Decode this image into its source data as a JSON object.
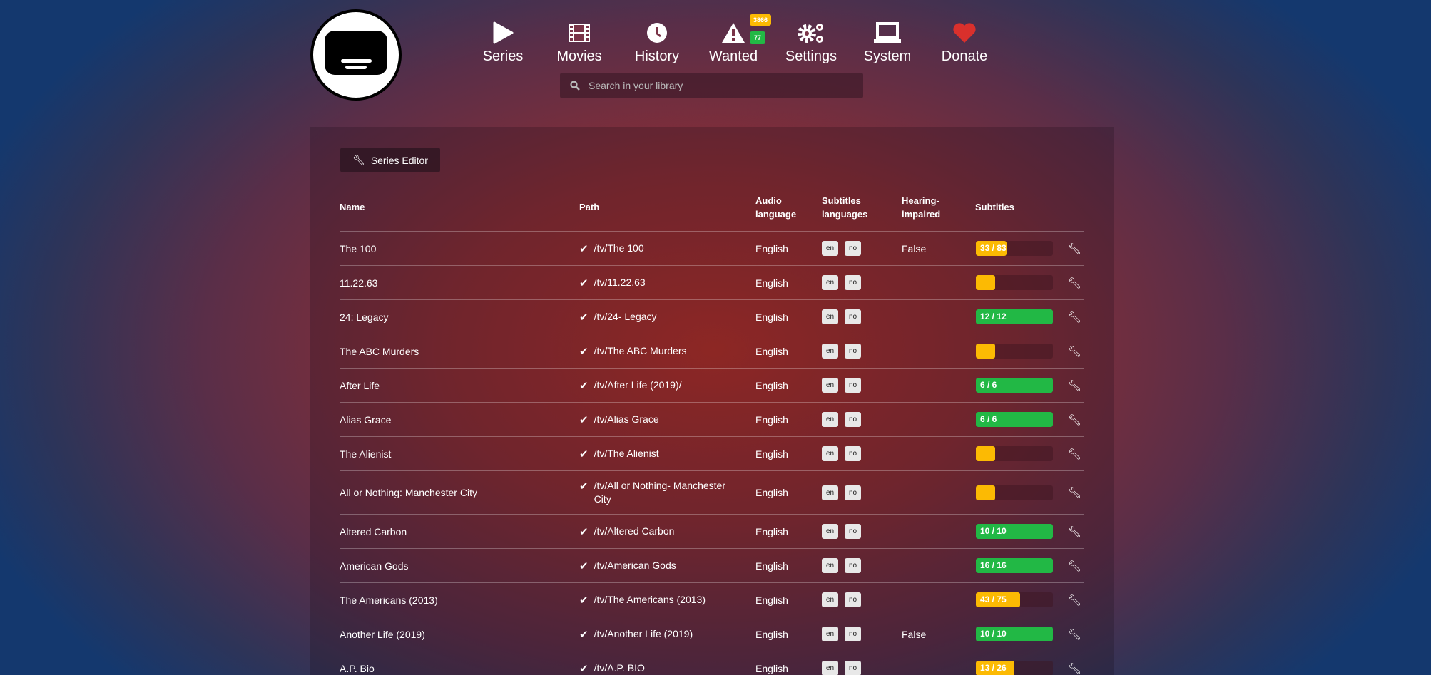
{
  "nav": [
    {
      "label": "Series",
      "icon": "play-icon"
    },
    {
      "label": "Movies",
      "icon": "film-icon"
    },
    {
      "label": "History",
      "icon": "clock-icon"
    },
    {
      "label": "Wanted",
      "icon": "warning-icon",
      "badges": [
        "3866",
        "77"
      ]
    },
    {
      "label": "Settings",
      "icon": "gears-icon"
    },
    {
      "label": "System",
      "icon": "laptop-icon"
    },
    {
      "label": "Donate",
      "icon": "heart-icon"
    }
  ],
  "search": {
    "placeholder": "Search in your library"
  },
  "toolbar": {
    "series_editor": "Series Editor"
  },
  "colors": {
    "complete": "#22b845",
    "partial": "#fcba03",
    "heart": "#d9302c"
  },
  "table": {
    "headers": [
      "Name",
      "Path",
      "Audio language",
      "Subtitles languages",
      "Hearing-impaired",
      "Subtitles"
    ],
    "rows": [
      {
        "name": "The 100",
        "path": "/tv/The 100",
        "audio": "English",
        "subs": [
          "en",
          "no"
        ],
        "hi": "False",
        "progress": "33 / 83",
        "fraction": 0.4
      },
      {
        "name": "11.22.63",
        "path": "/tv/11.22.63",
        "audio": "English",
        "subs": [
          "en",
          "no"
        ],
        "hi": "",
        "progress": "",
        "fraction": 0
      },
      {
        "name": "24: Legacy",
        "path": "/tv/24- Legacy",
        "audio": "English",
        "subs": [
          "en",
          "no"
        ],
        "hi": "",
        "progress": "12 / 12",
        "fraction": 1
      },
      {
        "name": "The ABC Murders",
        "path": "/tv/The ABC Murders",
        "audio": "English",
        "subs": [
          "en",
          "no"
        ],
        "hi": "",
        "progress": "",
        "fraction": 0
      },
      {
        "name": "After Life",
        "path": "/tv/After Life (2019)/",
        "audio": "English",
        "subs": [
          "en",
          "no"
        ],
        "hi": "",
        "progress": "6 / 6",
        "fraction": 1
      },
      {
        "name": "Alias Grace",
        "path": "/tv/Alias Grace",
        "audio": "English",
        "subs": [
          "en",
          "no"
        ],
        "hi": "",
        "progress": "6 / 6",
        "fraction": 1
      },
      {
        "name": "The Alienist",
        "path": "/tv/The Alienist",
        "audio": "English",
        "subs": [
          "en",
          "no"
        ],
        "hi": "",
        "progress": "",
        "fraction": 0
      },
      {
        "name": "All or Nothing: Manchester City",
        "path": "/tv/All or Nothing- Manchester City",
        "audio": "English",
        "subs": [
          "en",
          "no"
        ],
        "hi": "",
        "progress": "",
        "fraction": 0
      },
      {
        "name": "Altered Carbon",
        "path": "/tv/Altered Carbon",
        "audio": "English",
        "subs": [
          "en",
          "no"
        ],
        "hi": "",
        "progress": "10 / 10",
        "fraction": 1
      },
      {
        "name": "American Gods",
        "path": "/tv/American Gods",
        "audio": "English",
        "subs": [
          "en",
          "no"
        ],
        "hi": "",
        "progress": "16 / 16",
        "fraction": 1
      },
      {
        "name": "The Americans (2013)",
        "path": "/tv/The Americans (2013)",
        "audio": "English",
        "subs": [
          "en",
          "no"
        ],
        "hi": "",
        "progress": "43 / 75",
        "fraction": 0.57
      },
      {
        "name": "Another Life (2019)",
        "path": "/tv/Another Life (2019)",
        "audio": "English",
        "subs": [
          "en",
          "no"
        ],
        "hi": "False",
        "progress": "10 / 10",
        "fraction": 1
      },
      {
        "name": "A.P. Bio",
        "path": "/tv/A.P. BIO",
        "audio": "English",
        "subs": [
          "en",
          "no"
        ],
        "hi": "",
        "progress": "13 / 26",
        "fraction": 0.5
      }
    ]
  }
}
